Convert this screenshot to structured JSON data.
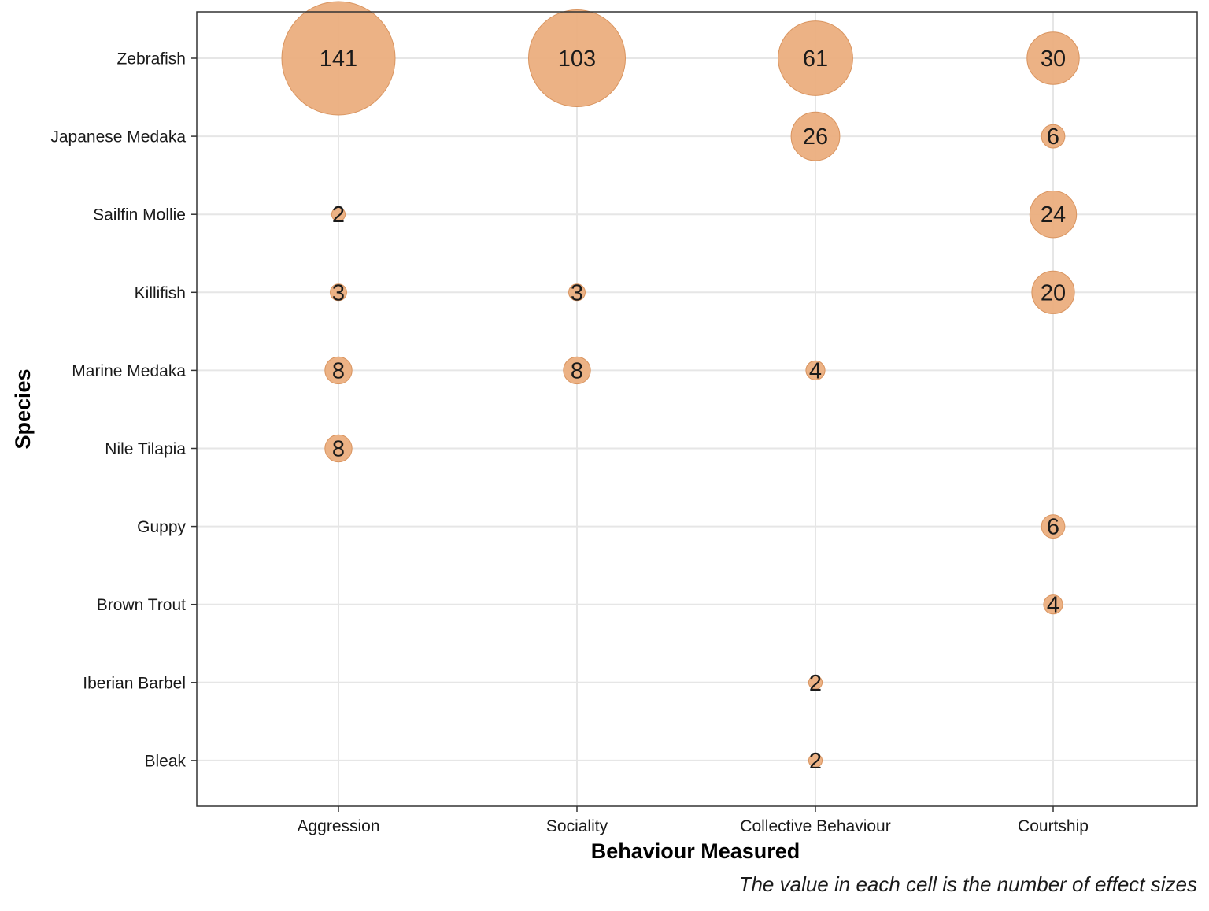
{
  "chart_data": {
    "type": "scatter",
    "encoding": "bubble",
    "x_categories": [
      "Aggression",
      "Sociality",
      "Collective Behaviour",
      "Courtship"
    ],
    "y_categories": [
      "Zebrafish",
      "Japanese Medaka",
      "Sailfin Mollie",
      "Killifish",
      "Marine Medaka",
      "Nile Tilapia",
      "Guppy",
      "Brown Trout",
      "Iberian Barbel",
      "Bleak"
    ],
    "points": [
      {
        "x": "Aggression",
        "y": "Zebrafish",
        "value": 141
      },
      {
        "x": "Sociality",
        "y": "Zebrafish",
        "value": 103
      },
      {
        "x": "Collective Behaviour",
        "y": "Zebrafish",
        "value": 61
      },
      {
        "x": "Courtship",
        "y": "Zebrafish",
        "value": 30
      },
      {
        "x": "Collective Behaviour",
        "y": "Japanese Medaka",
        "value": 26
      },
      {
        "x": "Courtship",
        "y": "Japanese Medaka",
        "value": 6
      },
      {
        "x": "Aggression",
        "y": "Sailfin Mollie",
        "value": 2
      },
      {
        "x": "Courtship",
        "y": "Sailfin Mollie",
        "value": 24
      },
      {
        "x": "Aggression",
        "y": "Killifish",
        "value": 3
      },
      {
        "x": "Sociality",
        "y": "Killifish",
        "value": 3
      },
      {
        "x": "Courtship",
        "y": "Killifish",
        "value": 20
      },
      {
        "x": "Aggression",
        "y": "Marine Medaka",
        "value": 8
      },
      {
        "x": "Sociality",
        "y": "Marine Medaka",
        "value": 8
      },
      {
        "x": "Collective Behaviour",
        "y": "Marine Medaka",
        "value": 4
      },
      {
        "x": "Aggression",
        "y": "Nile Tilapia",
        "value": 8
      },
      {
        "x": "Courtship",
        "y": "Guppy",
        "value": 6
      },
      {
        "x": "Courtship",
        "y": "Brown Trout",
        "value": 4
      },
      {
        "x": "Collective Behaviour",
        "y": "Iberian Barbel",
        "value": 2
      },
      {
        "x": "Collective Behaviour",
        "y": "Bleak",
        "value": 2
      }
    ],
    "xlabel": "Behaviour Measured",
    "ylabel": "Species",
    "caption": "The value in each cell is the number of effect sizes",
    "grid": true,
    "legend": "none",
    "bubble_color": "#EBAE7E",
    "bubble_stroke": "#D9945F"
  }
}
